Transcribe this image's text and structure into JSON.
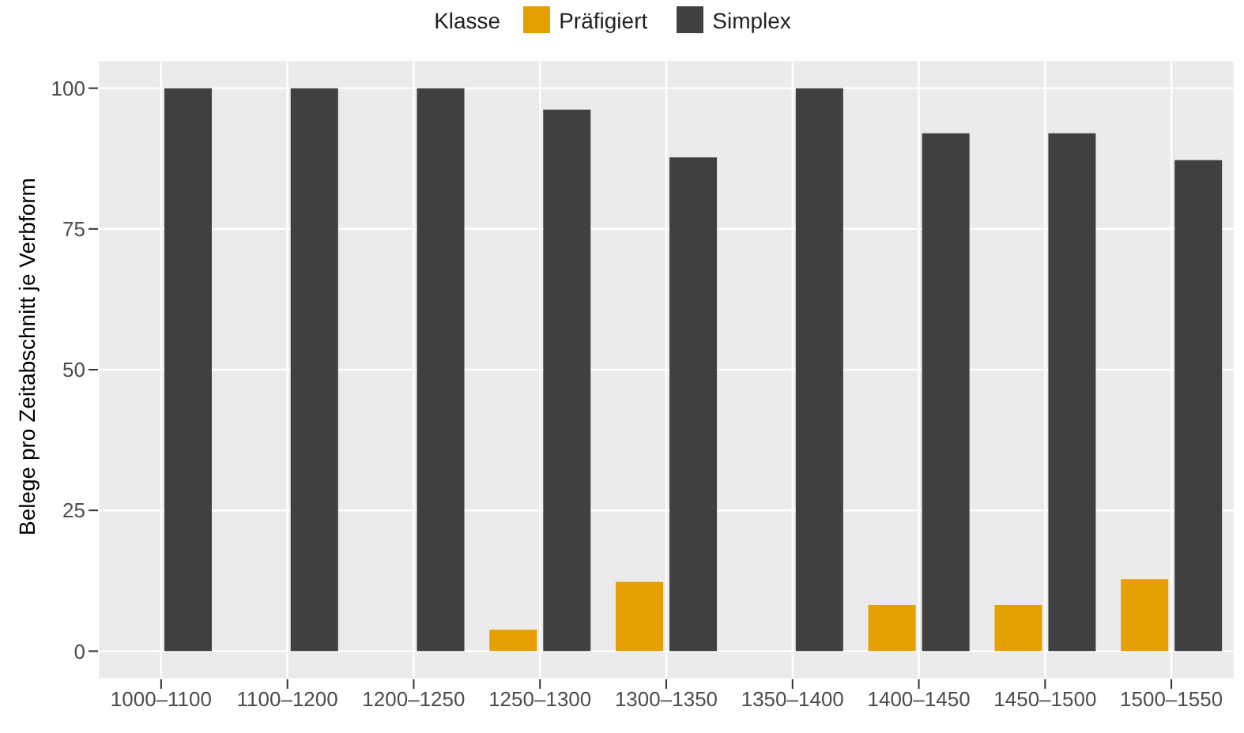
{
  "chart_data": {
    "type": "bar",
    "ylabel": "Belege pro Zeitabschnitt je Verbform",
    "legend_title": "Klasse",
    "categories": [
      "1000–1100",
      "1100–1200",
      "1200–1250",
      "1250–1300",
      "1300–1350",
      "1350–1400",
      "1400–1450",
      "1450–1500",
      "1500–1550"
    ],
    "series": [
      {
        "name": "Präfigiert",
        "color": "#e69f00",
        "values": [
          0,
          0,
          0,
          3.8,
          12.3,
          0,
          8.2,
          8.2,
          12.8
        ]
      },
      {
        "name": "Simplex",
        "color": "#404040",
        "values": [
          100,
          100,
          100,
          96.2,
          87.7,
          100,
          92,
          92,
          87.2
        ]
      }
    ],
    "ylim": [
      -5,
      105
    ],
    "yticks": [
      0,
      25,
      50,
      75,
      100
    ],
    "grid": true,
    "legend": "top"
  }
}
